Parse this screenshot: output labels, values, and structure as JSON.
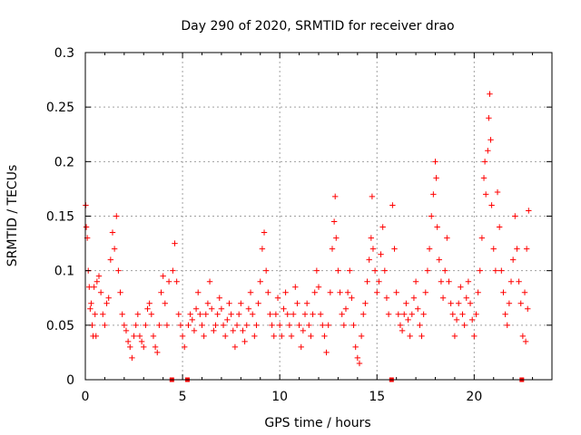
{
  "chart_data": {
    "type": "scatter",
    "title": "Day 290 of 2020, SRMTID for receiver drao",
    "xlabel": "GPS time / hours",
    "ylabel": "SRMTID / TECUs",
    "xlim": [
      0,
      24
    ],
    "ylim": [
      0,
      0.3
    ],
    "grid": true,
    "marker": "+",
    "color": "#ff0000",
    "x_ticks": [
      0,
      5,
      10,
      15,
      20
    ],
    "x_tick_labels": [
      "0",
      "5",
      "10",
      "15",
      "20"
    ],
    "y_ticks": [
      0,
      0.05,
      0.1,
      0.15,
      0.2,
      0.25,
      0.3
    ],
    "y_tick_labels": [
      "0",
      "0.05",
      "0.1",
      "0.15",
      "0.2",
      "0.25",
      "0.3"
    ],
    "zero_markers_x": [
      4.45,
      5.25,
      15.75,
      22.45
    ],
    "series": [
      {
        "name": "SRMTID",
        "points": [
          [
            0.02,
            0.16
          ],
          [
            0.05,
            0.14
          ],
          [
            0.1,
            0.13
          ],
          [
            0.15,
            0.1
          ],
          [
            0.2,
            0.085
          ],
          [
            0.3,
            0.07
          ],
          [
            0.35,
            0.05
          ],
          [
            0.4,
            0.04
          ],
          [
            0.5,
            0.06
          ],
          [
            0.6,
            0.09
          ],
          [
            0.7,
            0.095
          ],
          [
            0.8,
            0.08
          ],
          [
            0.9,
            0.06
          ],
          [
            1.0,
            0.05
          ],
          [
            1.1,
            0.07
          ],
          [
            1.2,
            0.075
          ],
          [
            1.3,
            0.11
          ],
          [
            1.4,
            0.135
          ],
          [
            1.5,
            0.12
          ],
          [
            1.6,
            0.15
          ],
          [
            1.7,
            0.1
          ],
          [
            1.8,
            0.08
          ],
          [
            1.9,
            0.06
          ],
          [
            2.0,
            0.05
          ],
          [
            2.1,
            0.045
          ],
          [
            2.2,
            0.035
          ],
          [
            2.3,
            0.03
          ],
          [
            2.4,
            0.02
          ],
          [
            2.5,
            0.04
          ],
          [
            2.6,
            0.05
          ],
          [
            2.7,
            0.06
          ],
          [
            2.8,
            0.04
          ],
          [
            2.9,
            0.035
          ],
          [
            3.0,
            0.03
          ],
          [
            3.1,
            0.05
          ],
          [
            3.2,
            0.065
          ],
          [
            3.3,
            0.07
          ],
          [
            3.4,
            0.06
          ],
          [
            3.5,
            0.04
          ],
          [
            3.6,
            0.03
          ],
          [
            3.7,
            0.025
          ],
          [
            3.8,
            0.05
          ],
          [
            3.9,
            0.08
          ],
          [
            4.0,
            0.095
          ],
          [
            4.1,
            0.07
          ],
          [
            4.2,
            0.05
          ],
          [
            4.3,
            0.09
          ],
          [
            4.5,
            0.1
          ],
          [
            4.6,
            0.125
          ],
          [
            4.7,
            0.09
          ],
          [
            4.8,
            0.06
          ],
          [
            4.9,
            0.05
          ],
          [
            5.0,
            0.04
          ],
          [
            5.1,
            0.03
          ],
          [
            5.3,
            0.05
          ],
          [
            5.4,
            0.06
          ],
          [
            5.5,
            0.055
          ],
          [
            5.6,
            0.045
          ],
          [
            5.7,
            0.065
          ],
          [
            5.8,
            0.08
          ],
          [
            5.9,
            0.06
          ],
          [
            6.0,
            0.05
          ],
          [
            6.1,
            0.04
          ],
          [
            6.2,
            0.06
          ],
          [
            6.3,
            0.07
          ],
          [
            6.4,
            0.09
          ],
          [
            6.5,
            0.065
          ],
          [
            6.6,
            0.045
          ],
          [
            6.7,
            0.05
          ],
          [
            6.8,
            0.06
          ],
          [
            6.9,
            0.075
          ],
          [
            7.0,
            0.065
          ],
          [
            7.1,
            0.05
          ],
          [
            7.2,
            0.04
          ],
          [
            7.3,
            0.055
          ],
          [
            7.4,
            0.07
          ],
          [
            7.5,
            0.06
          ],
          [
            7.6,
            0.045
          ],
          [
            7.7,
            0.03
          ],
          [
            7.8,
            0.05
          ],
          [
            7.9,
            0.06
          ],
          [
            8.0,
            0.07
          ],
          [
            8.1,
            0.045
          ],
          [
            8.2,
            0.035
          ],
          [
            8.3,
            0.05
          ],
          [
            8.4,
            0.065
          ],
          [
            8.5,
            0.08
          ],
          [
            8.6,
            0.06
          ],
          [
            8.7,
            0.04
          ],
          [
            8.8,
            0.05
          ],
          [
            8.9,
            0.07
          ],
          [
            9.0,
            0.09
          ],
          [
            9.1,
            0.12
          ],
          [
            9.2,
            0.135
          ],
          [
            9.3,
            0.1
          ],
          [
            9.4,
            0.08
          ],
          [
            9.5,
            0.06
          ],
          [
            9.6,
            0.05
          ],
          [
            9.7,
            0.04
          ],
          [
            9.8,
            0.06
          ],
          [
            9.9,
            0.075
          ],
          [
            10.0,
            0.05
          ],
          [
            10.1,
            0.04
          ],
          [
            10.2,
            0.065
          ],
          [
            10.3,
            0.08
          ],
          [
            10.4,
            0.06
          ],
          [
            10.5,
            0.05
          ],
          [
            10.6,
            0.04
          ],
          [
            10.7,
            0.06
          ],
          [
            10.8,
            0.085
          ],
          [
            10.9,
            0.07
          ],
          [
            11.0,
            0.05
          ],
          [
            11.1,
            0.03
          ],
          [
            11.2,
            0.045
          ],
          [
            11.3,
            0.06
          ],
          [
            11.4,
            0.07
          ],
          [
            11.5,
            0.05
          ],
          [
            11.6,
            0.04
          ],
          [
            11.7,
            0.06
          ],
          [
            11.8,
            0.08
          ],
          [
            11.9,
            0.1
          ],
          [
            12.0,
            0.085
          ],
          [
            12.1,
            0.06
          ],
          [
            12.2,
            0.05
          ],
          [
            12.3,
            0.04
          ],
          [
            12.4,
            0.025
          ],
          [
            12.5,
            0.05
          ],
          [
            12.6,
            0.08
          ],
          [
            12.7,
            0.12
          ],
          [
            12.8,
            0.145
          ],
          [
            12.85,
            0.168
          ],
          [
            12.9,
            0.13
          ],
          [
            13.0,
            0.1
          ],
          [
            13.1,
            0.08
          ],
          [
            13.2,
            0.06
          ],
          [
            13.3,
            0.05
          ],
          [
            13.4,
            0.065
          ],
          [
            13.5,
            0.08
          ],
          [
            13.6,
            0.1
          ],
          [
            13.7,
            0.075
          ],
          [
            13.8,
            0.05
          ],
          [
            13.9,
            0.03
          ],
          [
            14.0,
            0.02
          ],
          [
            14.1,
            0.015
          ],
          [
            14.2,
            0.04
          ],
          [
            14.3,
            0.06
          ],
          [
            14.4,
            0.07
          ],
          [
            14.5,
            0.09
          ],
          [
            14.6,
            0.11
          ],
          [
            14.7,
            0.13
          ],
          [
            14.75,
            0.168
          ],
          [
            14.8,
            0.12
          ],
          [
            14.9,
            0.1
          ],
          [
            15.0,
            0.08
          ],
          [
            15.1,
            0.09
          ],
          [
            15.2,
            0.115
          ],
          [
            15.3,
            0.14
          ],
          [
            15.4,
            0.1
          ],
          [
            15.5,
            0.075
          ],
          [
            15.6,
            0.06
          ],
          [
            15.8,
            0.16
          ],
          [
            15.9,
            0.12
          ],
          [
            16.0,
            0.08
          ],
          [
            16.1,
            0.06
          ],
          [
            16.2,
            0.05
          ],
          [
            16.3,
            0.045
          ],
          [
            16.4,
            0.06
          ],
          [
            16.5,
            0.07
          ],
          [
            16.6,
            0.055
          ],
          [
            16.7,
            0.04
          ],
          [
            16.8,
            0.06
          ],
          [
            16.9,
            0.075
          ],
          [
            17.0,
            0.09
          ],
          [
            17.1,
            0.065
          ],
          [
            17.2,
            0.05
          ],
          [
            17.3,
            0.04
          ],
          [
            17.4,
            0.06
          ],
          [
            17.5,
            0.08
          ],
          [
            17.6,
            0.1
          ],
          [
            17.7,
            0.12
          ],
          [
            17.8,
            0.15
          ],
          [
            17.9,
            0.17
          ],
          [
            18.0,
            0.2
          ],
          [
            18.05,
            0.185
          ],
          [
            18.1,
            0.14
          ],
          [
            18.2,
            0.11
          ],
          [
            18.3,
            0.09
          ],
          [
            18.4,
            0.075
          ],
          [
            18.5,
            0.1
          ],
          [
            18.6,
            0.13
          ],
          [
            18.7,
            0.09
          ],
          [
            18.8,
            0.07
          ],
          [
            18.9,
            0.06
          ],
          [
            19.0,
            0.04
          ],
          [
            19.1,
            0.055
          ],
          [
            19.2,
            0.07
          ],
          [
            19.3,
            0.085
          ],
          [
            19.4,
            0.06
          ],
          [
            19.5,
            0.05
          ],
          [
            19.6,
            0.075
          ],
          [
            19.7,
            0.09
          ],
          [
            19.8,
            0.07
          ],
          [
            19.9,
            0.055
          ],
          [
            20.0,
            0.04
          ],
          [
            20.1,
            0.06
          ],
          [
            20.2,
            0.08
          ],
          [
            20.3,
            0.1
          ],
          [
            20.4,
            0.13
          ],
          [
            20.5,
            0.185
          ],
          [
            20.55,
            0.2
          ],
          [
            20.6,
            0.17
          ],
          [
            20.7,
            0.21
          ],
          [
            20.75,
            0.24
          ],
          [
            20.8,
            0.262
          ],
          [
            20.85,
            0.22
          ],
          [
            20.9,
            0.16
          ],
          [
            21.0,
            0.12
          ],
          [
            21.1,
            0.1
          ],
          [
            21.2,
            0.172
          ],
          [
            21.3,
            0.14
          ],
          [
            21.4,
            0.1
          ],
          [
            21.5,
            0.08
          ],
          [
            21.6,
            0.06
          ],
          [
            21.7,
            0.05
          ],
          [
            21.8,
            0.07
          ],
          [
            21.9,
            0.09
          ],
          [
            22.0,
            0.11
          ],
          [
            22.1,
            0.15
          ],
          [
            22.2,
            0.12
          ],
          [
            22.3,
            0.09
          ],
          [
            22.4,
            0.07
          ],
          [
            22.5,
            0.04
          ],
          [
            22.6,
            0.08
          ],
          [
            22.7,
            0.12
          ],
          [
            22.8,
            0.155
          ],
          [
            22.75,
            0.065
          ],
          [
            22.65,
            0.035
          ],
          [
            0.25,
            0.065
          ],
          [
            0.45,
            0.085
          ],
          [
            0.55,
            0.04
          ]
        ]
      }
    ]
  }
}
